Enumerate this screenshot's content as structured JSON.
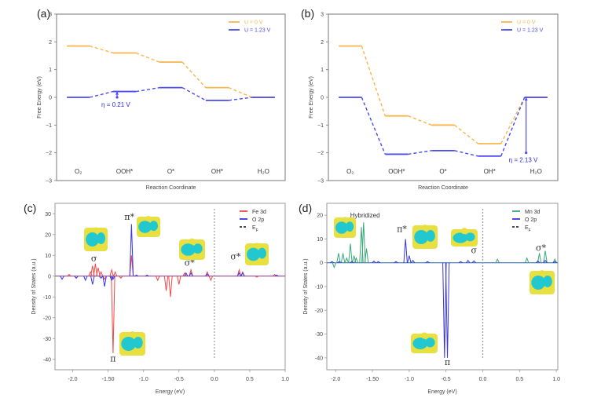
{
  "colors": {
    "orange": "#f9b44a",
    "blue": "#4a4af0",
    "fe3d": "#f04848",
    "o2p": "#3636e6",
    "mn3d": "#3aa878",
    "fermi": "#999999",
    "axis": "#777777"
  },
  "chart_data": [
    {
      "panel": "(a)",
      "type": "line",
      "title": "",
      "xlabel": "Reaction Coordinate",
      "ylabel": "Free Energy (eV)",
      "ylim": [
        -3,
        3
      ],
      "yticks": [
        "3",
        "2",
        "1",
        "0",
        "−1",
        "−2",
        "−3"
      ],
      "yvals": [
        3,
        2,
        1,
        0,
        -1,
        -2,
        -3
      ],
      "categories": [
        "O₂",
        "OOH*",
        "O*",
        "OH*",
        "H₂O"
      ],
      "series": [
        {
          "name": "U = 0 V",
          "values": [
            1.85,
            1.6,
            1.27,
            0.35,
            0.0
          ]
        },
        {
          "name": "U = 1.23 V",
          "values": [
            0.0,
            0.21,
            0.35,
            -0.11,
            0.0
          ]
        }
      ],
      "annotation": {
        "text": "η = 0.21 V",
        "step_index": 1,
        "from": 0.0,
        "to": 0.21
      },
      "legend": "top-right"
    },
    {
      "panel": "(b)",
      "type": "line",
      "title": "",
      "xlabel": "Reaction Coordinate",
      "ylabel": "Free Energy (eV)",
      "ylim": [
        -3,
        3
      ],
      "yticks": [
        "3",
        "2",
        "1",
        "0",
        "−1",
        "−2",
        "−3"
      ],
      "yvals": [
        3,
        2,
        1,
        0,
        -1,
        -2,
        -3
      ],
      "categories": [
        "O₂",
        "OOH*",
        "O*",
        "OH*",
        "H₂O"
      ],
      "series": [
        {
          "name": "U = 0 V",
          "values": [
            1.85,
            -0.67,
            -1.0,
            -1.67,
            0.0
          ]
        },
        {
          "name": "U = 1.23 V",
          "values": [
            0.0,
            -2.05,
            -1.92,
            -2.12,
            0.0
          ]
        }
      ],
      "annotation": {
        "text": "η = 2.13 V",
        "step_index": 4,
        "from": -2.0,
        "to": 0.0
      },
      "legend": "top-right"
    },
    {
      "panel": "(c)",
      "type": "line",
      "xlabel": "Energy (eV)",
      "ylabel": "Density of States (a.u.)",
      "xlim": [
        -2.25,
        1.0
      ],
      "ylim": [
        -45,
        35
      ],
      "xticks": [
        "-2.0",
        "-1.50",
        "-1.0",
        "-0.5",
        "0.0",
        "0.5",
        "1.0"
      ],
      "xvals": [
        -2.0,
        -1.5,
        -1.0,
        -0.5,
        0.0,
        0.5,
        1.0
      ],
      "yticks": [
        "30",
        "20",
        "10",
        "0",
        "-10",
        "-20",
        "-30",
        "-40"
      ],
      "yvals": [
        30,
        20,
        10,
        0,
        -10,
        -20,
        -30,
        -40
      ],
      "series": [
        {
          "name": "Fe 3d",
          "peaks": [
            [
              -2.05,
              0.8
            ],
            [
              -1.95,
              -1
            ],
            [
              -1.75,
              2
            ],
            [
              -1.72,
              5
            ],
            [
              -1.68,
              6
            ],
            [
              -1.64,
              4
            ],
            [
              -1.6,
              2
            ],
            [
              -1.55,
              -1.5
            ],
            [
              -1.45,
              3
            ],
            [
              -1.43,
              -37
            ],
            [
              -1.4,
              2
            ],
            [
              -1.32,
              -1
            ],
            [
              -1.17,
              10
            ],
            [
              -0.8,
              -2
            ],
            [
              -0.68,
              -7
            ],
            [
              -0.62,
              -10
            ],
            [
              -0.5,
              -4
            ],
            [
              -0.42,
              1.5
            ],
            [
              -0.33,
              3
            ],
            [
              -0.1,
              2
            ],
            [
              -0.05,
              -2
            ],
            [
              0.35,
              3
            ],
            [
              0.4,
              2
            ],
            [
              0.6,
              -0.5
            ],
            [
              0.85,
              0.8
            ]
          ]
        },
        {
          "name": "O 2p",
          "peaks": [
            [
              -2.15,
              -1.5
            ],
            [
              -1.95,
              -1
            ],
            [
              -1.82,
              -2
            ],
            [
              -1.72,
              -4
            ],
            [
              -1.6,
              -1
            ],
            [
              -1.55,
              -5
            ],
            [
              -1.45,
              -2
            ],
            [
              -1.43,
              -1.5
            ],
            [
              -1.17,
              25
            ],
            [
              -1.1,
              0.5
            ],
            [
              -0.95,
              0.5
            ],
            [
              -0.4,
              1.5
            ],
            [
              -0.33,
              1.5
            ],
            [
              -0.1,
              1
            ],
            [
              0.35,
              1.5
            ],
            [
              0.4,
              1.5
            ],
            [
              0.88,
              0.5
            ]
          ]
        },
        {
          "name": "E_F",
          "x": 0.0
        }
      ],
      "annotations": [
        {
          "text": "σ",
          "x": -1.7,
          "y": 7
        },
        {
          "text": "π*",
          "x": -1.2,
          "y": 27
        },
        {
          "text": "σ*",
          "x": -0.35,
          "y": 5
        },
        {
          "text": "σ*",
          "x": 0.3,
          "y": 8
        },
        {
          "text": "π",
          "x": -1.43,
          "y": -41
        }
      ],
      "legend": "top-right"
    },
    {
      "panel": "(d)",
      "type": "line",
      "xlabel": "Energy (eV)",
      "ylabel": "Density of States (a.u.)",
      "xlim": [
        -2.12,
        1.02
      ],
      "ylim": [
        -45,
        25
      ],
      "xticks": [
        "-2.0",
        "-1.50",
        "-1.0",
        "-0.5",
        "0.0",
        "0.5",
        "1.0"
      ],
      "xvals": [
        -2.0,
        -1.5,
        -1.0,
        -0.5,
        0.0,
        0.5,
        1.0
      ],
      "yticks": [
        "20",
        "10",
        "0",
        "-10",
        "-20",
        "-30",
        "-40"
      ],
      "yvals": [
        20,
        10,
        0,
        -10,
        -20,
        -30,
        -40
      ],
      "series": [
        {
          "name": "Mn 3d",
          "peaks": [
            [
              -2.02,
              -2
            ],
            [
              -1.96,
              4
            ],
            [
              -1.9,
              4
            ],
            [
              -1.85,
              2
            ],
            [
              -1.8,
              8
            ],
            [
              -1.75,
              3
            ],
            [
              -1.72,
              2
            ],
            [
              -1.65,
              15
            ],
            [
              -1.62,
              17
            ],
            [
              -1.58,
              6
            ],
            [
              0.2,
              1.5
            ],
            [
              0.6,
              2
            ],
            [
              0.77,
              4
            ],
            [
              0.85,
              5
            ],
            [
              0.98,
              1.5
            ]
          ]
        },
        {
          "name": "O 2p",
          "peaks": [
            [
              -2.05,
              0.5
            ],
            [
              -1.95,
              0.5
            ],
            [
              -1.78,
              0.5
            ],
            [
              -1.48,
              0.7
            ],
            [
              -1.42,
              0.5
            ],
            [
              -1.18,
              0.5
            ],
            [
              -1.05,
              10
            ],
            [
              -1.0,
              3
            ],
            [
              -0.95,
              1
            ],
            [
              -0.75,
              0.5
            ],
            [
              -0.52,
              -40
            ],
            [
              -0.48,
              -40
            ],
            [
              -0.3,
              0.5
            ],
            [
              -0.2,
              1
            ],
            [
              -0.12,
              0.8
            ],
            [
              0.75,
              0.8
            ],
            [
              0.85,
              1
            ],
            [
              0.98,
              0.5
            ]
          ]
        },
        {
          "name": "E_F",
          "x": 0.0
        }
      ],
      "annotations": [
        {
          "text": "Hybridized",
          "x": -1.6,
          "y": 19
        },
        {
          "text": "π*",
          "x": -1.1,
          "y": 13
        },
        {
          "text": "σ",
          "x": -0.12,
          "y": 4
        },
        {
          "text": "σ*",
          "x": 0.79,
          "y": 5
        },
        {
          "text": "π",
          "x": -0.48,
          "y": -43
        }
      ],
      "legend": "top-right"
    }
  ],
  "labels": {
    "legend_u0": "U = 0 V",
    "legend_u123": "U = 1.23 V",
    "fe3d": "Fe 3d",
    "mn3d": "Mn 3d",
    "o2p": "O 2p",
    "ef": "E",
    "ef_sub": "F"
  }
}
